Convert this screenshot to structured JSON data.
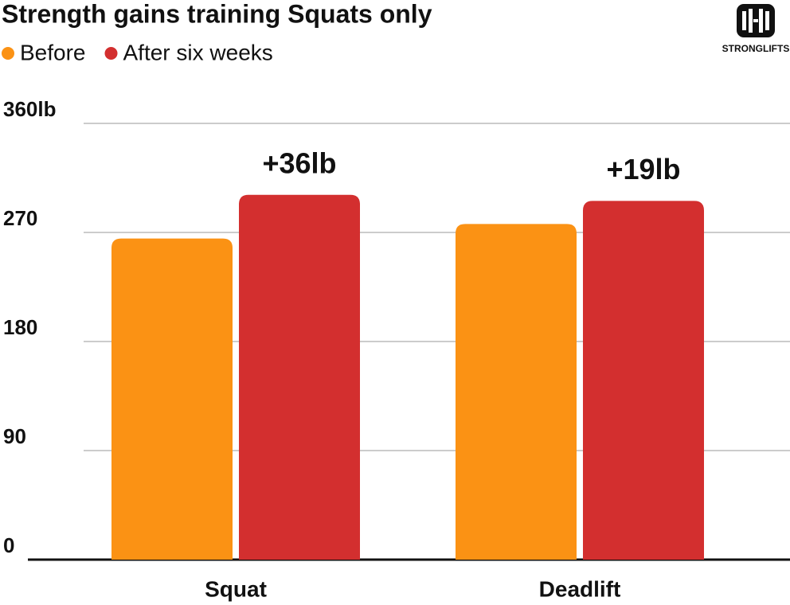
{
  "chart_data": {
    "type": "bar",
    "title": "Strength gains training Squats only",
    "categories": [
      "Squat",
      "Deadlift"
    ],
    "series": [
      {
        "name": "Before",
        "color": "#fb9214",
        "values": [
          265,
          277
        ]
      },
      {
        "name": "After six weeks",
        "color": "#d32f2f",
        "values": [
          301,
          296
        ]
      }
    ],
    "annotations": [
      "+36lb",
      "+19lb"
    ],
    "ylim": [
      0,
      360
    ],
    "yticks": [
      0,
      90,
      180,
      270,
      {
        "value": 360,
        "label": "360lb"
      }
    ],
    "grid": true
  },
  "brand": "STRONGLIFTS"
}
